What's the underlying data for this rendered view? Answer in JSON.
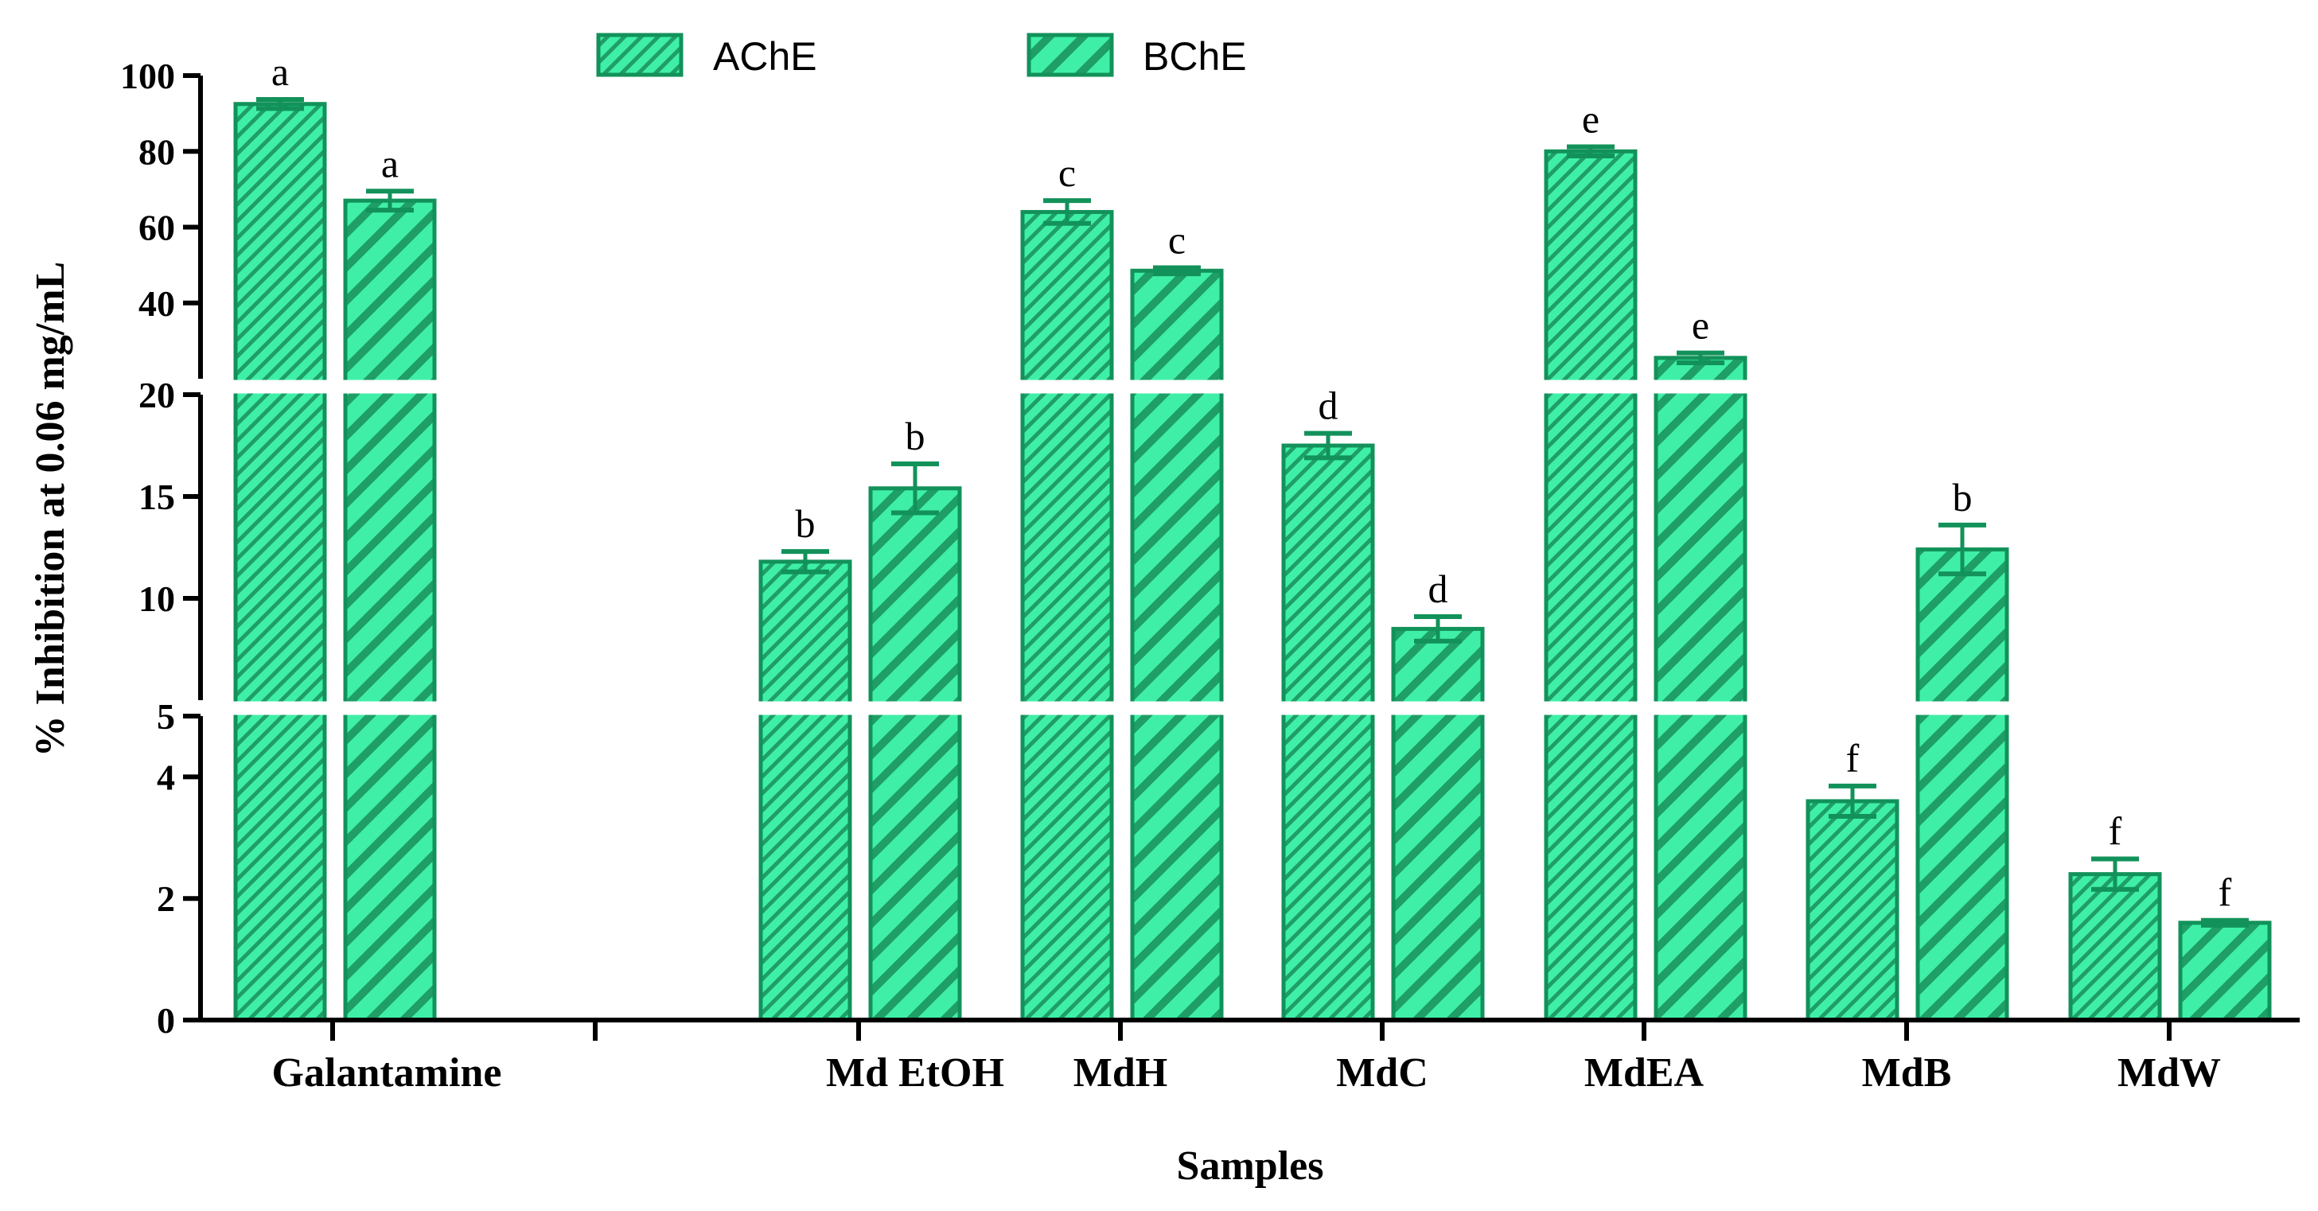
{
  "chart_data": {
    "type": "bar",
    "xlabel": "Samples",
    "ylabel": "% Inhibition at 0.06 mg/mL",
    "ylim": [
      0,
      100
    ],
    "y_axis_breaks": [
      {
        "range": [
          0,
          5
        ],
        "ticks": [
          "0",
          "2",
          "4"
        ],
        "tick_values": [
          0,
          2,
          4
        ]
      },
      {
        "range": [
          5,
          20
        ],
        "ticks": [
          "5",
          "10",
          "15",
          "20"
        ],
        "tick_values": [
          5,
          10,
          15,
          20
        ]
      },
      {
        "range": [
          20,
          100
        ],
        "ticks": [
          "40",
          "60",
          "80",
          "100"
        ],
        "tick_values": [
          40,
          60,
          80,
          100
        ]
      }
    ],
    "categories": [
      "Galantamine",
      "Md EtOH",
      "MdH",
      "MdC",
      "MdEA",
      "MdB",
      "MdW"
    ],
    "legend_position": "top-center",
    "grid": false,
    "series": [
      {
        "name": "AChE",
        "color": "#3fefa8",
        "edge_color": "#12925a",
        "values": [
          92.5,
          11.8,
          64,
          17.5,
          80,
          3.6,
          2.4
        ],
        "errors": [
          1.2,
          0.5,
          3,
          0.6,
          1.2,
          0.25,
          0.25
        ],
        "significance": [
          "a",
          "b",
          "c",
          "d",
          "e",
          "f",
          "f"
        ]
      },
      {
        "name": "BChE",
        "color": "#3fefa8",
        "edge_color": "#12925a",
        "values": [
          67,
          15.4,
          48.5,
          8.5,
          25.5,
          12.4,
          1.6
        ],
        "errors": [
          2.5,
          1.2,
          0.8,
          0.6,
          1.3,
          1.2,
          0.04
        ],
        "significance": [
          "a",
          "b",
          "c",
          "d",
          "e",
          "b",
          "f"
        ]
      }
    ]
  }
}
